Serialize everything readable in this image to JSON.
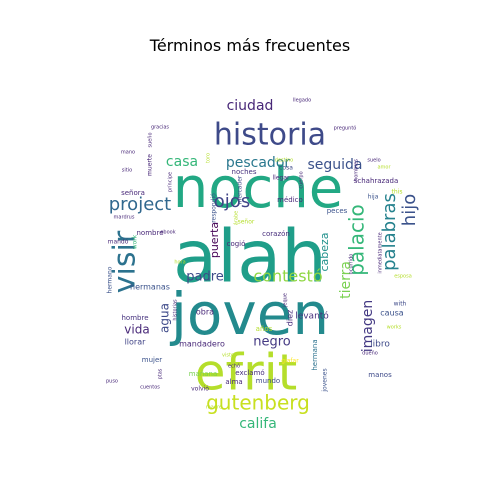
{
  "chart_data": {
    "type": "wordcloud",
    "title": "Términos más frecuentes",
    "shape": "circle",
    "background": "#ffffff",
    "colormap": "viridis",
    "words": [
      {
        "text": "alah",
        "weight": 100,
        "color": "#1f9e89",
        "rotated": false
      },
      {
        "text": "joven",
        "weight": 95,
        "color": "#238a8d",
        "rotated": false
      },
      {
        "text": "noche",
        "weight": 88,
        "color": "#22a884",
        "rotated": false
      },
      {
        "text": "efrit",
        "weight": 80,
        "color": "#b5de2b",
        "rotated": false
      },
      {
        "text": "historia",
        "weight": 55,
        "color": "#3e4a89",
        "rotated": false
      },
      {
        "text": "visir",
        "weight": 45,
        "color": "#2c728e",
        "rotated": true
      },
      {
        "text": "gutenberg",
        "weight": 33,
        "color": "#c8e020",
        "rotated": false
      },
      {
        "text": "project",
        "weight": 30,
        "color": "#31688e",
        "rotated": false
      },
      {
        "text": "palacio",
        "weight": 29,
        "color": "#35b779",
        "rotated": true
      },
      {
        "text": "palabras",
        "weight": 28,
        "color": "#26828e",
        "rotated": true
      },
      {
        "text": "contestó",
        "weight": 27,
        "color": "#90d743",
        "rotated": false
      },
      {
        "text": "ojos",
        "weight": 26,
        "color": "#414487",
        "rotated": false
      },
      {
        "text": "hijo",
        "weight": 25,
        "color": "#3b528b",
        "rotated": true
      },
      {
        "text": "pescador",
        "weight": 24,
        "color": "#2a788e",
        "rotated": false
      },
      {
        "text": "casa",
        "weight": 23,
        "color": "#35b779",
        "rotated": false
      },
      {
        "text": "seguida",
        "weight": 22,
        "color": "#3b528b",
        "rotated": false
      },
      {
        "text": "ciudad",
        "weight": 21,
        "color": "#482878",
        "rotated": false
      },
      {
        "text": "tierra",
        "weight": 20,
        "color": "#7ad151",
        "rotated": true
      },
      {
        "text": "califa",
        "weight": 20,
        "color": "#35b779",
        "rotated": false
      },
      {
        "text": "imagen",
        "weight": 19,
        "color": "#443983",
        "rotated": true
      },
      {
        "text": "padre",
        "weight": 18,
        "color": "#3e4a89",
        "rotated": false
      },
      {
        "text": "negro",
        "weight": 17,
        "color": "#443983",
        "rotated": false
      },
      {
        "text": "vida",
        "weight": 16,
        "color": "#482878",
        "rotated": false
      },
      {
        "text": "agua",
        "weight": 16,
        "color": "#3e4a89",
        "rotated": true
      },
      {
        "text": "cabeza",
        "weight": 15,
        "color": "#21918c",
        "rotated": true
      },
      {
        "text": "puerta",
        "weight": 15,
        "color": "#440154",
        "rotated": true
      },
      {
        "text": "levantó",
        "weight": 10,
        "color": "#46327e",
        "rotated": false
      },
      {
        "text": "libro",
        "weight": 10,
        "color": "#3e4a89",
        "rotated": false
      },
      {
        "text": "hermanas",
        "weight": 9,
        "color": "#3b528b",
        "rotated": false
      },
      {
        "text": "mandadero",
        "weight": 9,
        "color": "#482878",
        "rotated": false
      },
      {
        "text": "llorar",
        "weight": 9,
        "color": "#414487",
        "rotated": false
      },
      {
        "text": "hombre",
        "weight": 9,
        "color": "#46327e",
        "rotated": false
      },
      {
        "text": "obra",
        "weight": 9,
        "color": "#482878",
        "rotated": false
      },
      {
        "text": "diez",
        "weight": 9,
        "color": "#472d7b",
        "rotated": true
      },
      {
        "text": "causa",
        "weight": 9,
        "color": "#3b528b",
        "rotated": false
      },
      {
        "text": "alma",
        "weight": 9,
        "color": "#482878",
        "rotated": false
      },
      {
        "text": "mundo",
        "weight": 9,
        "color": "#3e4a89",
        "rotated": false
      },
      {
        "text": "manos",
        "weight": 9,
        "color": "#3e4a89",
        "rotated": false
      },
      {
        "text": "mañana",
        "weight": 9,
        "color": "#7ad151",
        "rotated": false
      },
      {
        "text": "exclamó",
        "weight": 9,
        "color": "#472d7b",
        "rotated": false
      },
      {
        "text": "mujer",
        "weight": 9,
        "color": "#3b528b",
        "rotated": false
      },
      {
        "text": "noches",
        "weight": 9,
        "color": "#46327e",
        "rotated": false
      },
      {
        "text": "cogió",
        "weight": 9,
        "color": "#482878",
        "rotated": false
      },
      {
        "text": "corazón",
        "weight": 9,
        "color": "#472d7b",
        "rotated": false
      },
      {
        "text": "nombre",
        "weight": 8,
        "color": "#482878",
        "rotated": false
      },
      {
        "text": "schahrazada",
        "weight": 8,
        "color": "#482878",
        "rotated": false
      },
      {
        "text": "peces",
        "weight": 8,
        "color": "#3b528b",
        "rotated": false
      },
      {
        "text": "médico",
        "weight": 8,
        "color": "#482878",
        "rotated": false
      },
      {
        "text": "hermana",
        "weight": 8,
        "color": "#2c728e",
        "rotated": true
      },
      {
        "text": "años",
        "weight": 8,
        "color": "#b5de2b",
        "rotated": false
      },
      {
        "text": "jovenes",
        "weight": 7,
        "color": "#3b528b",
        "rotated": true
      },
      {
        "text": "muerte",
        "weight": 7,
        "color": "#482878",
        "rotated": true
      },
      {
        "text": "señora",
        "weight": 7,
        "color": "#482878",
        "rotated": false
      },
      {
        "text": "mandó",
        "weight": 7,
        "color": "#482878",
        "rotated": false
      },
      {
        "text": "hermano",
        "weight": 7,
        "color": "#3b528b",
        "rotated": true
      },
      {
        "text": "volvió",
        "weight": 7,
        "color": "#482878",
        "rotated": false
      },
      {
        "text": "mercader",
        "weight": 7,
        "color": "#3e4a89",
        "rotated": true
      },
      {
        "text": "respondió",
        "weight": 7,
        "color": "#3b528b",
        "rotated": true
      },
      {
        "text": "giafar",
        "weight": 7,
        "color": "#fde725",
        "rotated": false
      },
      {
        "text": "señor",
        "weight": 7,
        "color": "#b5de2b",
        "rotated": false
      },
      {
        "text": "llegar",
        "weight": 7,
        "color": "#482878",
        "rotated": false
      },
      {
        "text": "cosa",
        "weight": 6,
        "color": "#3e4a89",
        "rotated": false
      },
      {
        "text": "hija",
        "weight": 7,
        "color": "#3b528b",
        "rotated": false
      },
      {
        "text": "this",
        "weight": 6,
        "color": "#b5de2b",
        "rotated": false
      },
      {
        "text": "with",
        "weight": 6,
        "color": "#3e4a89",
        "rotated": false
      },
      {
        "text": "work",
        "weight": 6,
        "color": "#35b779",
        "rotated": true
      },
      {
        "text": "works",
        "weight": 5,
        "color": "#b5de2b",
        "rotated": false
      },
      {
        "text": "ebook",
        "weight": 5,
        "color": "#482878",
        "rotated": false
      },
      {
        "text": "puso",
        "weight": 5,
        "color": "#482878",
        "rotated": false
      },
      {
        "text": "mano",
        "weight": 5,
        "color": "#482878",
        "rotated": false
      },
      {
        "text": "sitio",
        "weight": 5,
        "color": "#482878",
        "rotated": false
      },
      {
        "text": "mardrus",
        "weight": 5,
        "color": "#482878",
        "rotated": false
      },
      {
        "text": "hora",
        "weight": 5,
        "color": "#b5de2b",
        "rotated": false
      },
      {
        "text": "echó",
        "weight": 5,
        "color": "#482878",
        "rotated": false
      },
      {
        "text": "madre",
        "weight": 5,
        "color": "#b5de2b",
        "rotated": false
      },
      {
        "text": "cuentos",
        "weight": 5,
        "color": "#482878",
        "rotated": false
      },
      {
        "text": "esposa",
        "weight": 5,
        "color": "#b5de2b",
        "rotated": false
      },
      {
        "text": "dueño",
        "weight": 5,
        "color": "#482878",
        "rotated": false
      },
      {
        "text": "suelo",
        "weight": 5,
        "color": "#482878",
        "rotated": false
      },
      {
        "text": "amor",
        "weight": 5,
        "color": "#b5de2b",
        "rotated": false
      },
      {
        "text": "preguntó",
        "weight": 5,
        "color": "#482878",
        "rotated": false
      },
      {
        "text": "gracias",
        "weight": 5,
        "color": "#482878",
        "rotated": false
      },
      {
        "text": "llegado",
        "weight": 5,
        "color": "#482878",
        "rotated": false
      },
      {
        "text": "destino",
        "weight": 5,
        "color": "#b5de2b",
        "rotated": false
      },
      {
        "text": "visto",
        "weight": 5,
        "color": "#b5de2b",
        "rotated": false
      },
      {
        "text": "cuerpo",
        "weight": 5,
        "color": "#482878",
        "rotated": true
      },
      {
        "text": "hombres",
        "weight": 5,
        "color": "#482878",
        "rotated": true
      },
      {
        "text": "árabe",
        "weight": 5,
        "color": "#b5de2b",
        "rotated": true
      },
      {
        "text": "príncipe",
        "weight": 5,
        "color": "#482878",
        "rotated": true
      },
      {
        "text": "sueño",
        "weight": 5,
        "color": "#482878",
        "rotated": true
      },
      {
        "text": "toro",
        "weight": 5,
        "color": "#b5de2b",
        "rotated": true
      },
      {
        "text": "inmediatamente",
        "weight": 5,
        "color": "#482878",
        "rotated": true
      },
      {
        "text": "ocurrido",
        "weight": 5,
        "color": "#482878",
        "rotated": true
      },
      {
        "text": "historias",
        "weight": 5,
        "color": "#482878",
        "rotated": true
      },
      {
        "text": "jeque",
        "weight": 5,
        "color": "#482878",
        "rotated": true
      },
      {
        "text": "ptas",
        "weight": 4,
        "color": "#482878",
        "rotated": true
      }
    ]
  }
}
